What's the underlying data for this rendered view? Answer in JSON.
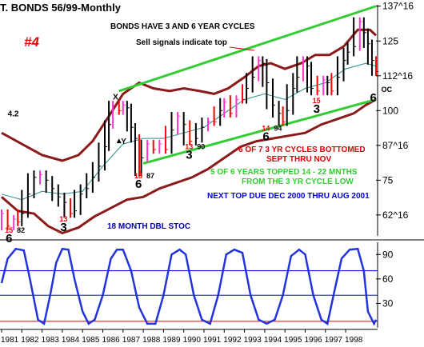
{
  "chart_data": {
    "type": "bar",
    "title": "T. BONDS 56/99-Monthly",
    "chart_number": "#4",
    "price_axis": {
      "ticks": [
        {
          "label": "137^16",
          "value": 137.5
        },
        {
          "label": "125",
          "value": 125
        },
        {
          "label": "112^16",
          "value": 112.5
        },
        {
          "label": "100",
          "value": 100
        },
        {
          "label": "87^16",
          "value": 87.5
        },
        {
          "label": "75",
          "value": 75
        },
        {
          "label": "62^16",
          "value": 62.5
        }
      ],
      "range": [
        55,
        138
      ]
    },
    "x_axis": {
      "tick_labels": [
        "1981",
        "1982",
        "1983",
        "1984",
        "1985",
        "1986",
        "1987",
        "1988",
        "1989",
        "1990",
        "1991",
        "1992",
        "1993",
        "1994",
        "1995",
        "1996",
        "1997",
        "1998"
      ],
      "range": [
        1981,
        1999.5
      ]
    },
    "price_series": {
      "name": "Monthly T-Bond price bars",
      "points": [
        [
          1981.0,
          63
        ],
        [
          1981.3,
          58.5
        ],
        [
          1981.6,
          61
        ],
        [
          1981.8,
          60
        ],
        [
          1982.0,
          63
        ],
        [
          1982.3,
          70
        ],
        [
          1982.6,
          76
        ],
        [
          1982.9,
          77
        ],
        [
          1983.2,
          75
        ],
        [
          1983.5,
          72
        ],
        [
          1983.8,
          69
        ],
        [
          1984.1,
          67
        ],
        [
          1984.4,
          63
        ],
        [
          1984.6,
          64
        ],
        [
          1984.9,
          70
        ],
        [
          1985.2,
          72
        ],
        [
          1985.5,
          76
        ],
        [
          1985.8,
          80
        ],
        [
          1986.1,
          87
        ],
        [
          1986.3,
          95
        ],
        [
          1986.5,
          102
        ],
        [
          1986.8,
          100
        ],
        [
          1987.0,
          102
        ],
        [
          1987.2,
          101
        ],
        [
          1987.4,
          94
        ],
        [
          1987.6,
          90
        ],
        [
          1987.8,
          78
        ],
        [
          1987.9,
          83
        ],
        [
          1988.2,
          88
        ],
        [
          1988.5,
          86
        ],
        [
          1988.8,
          88
        ],
        [
          1989.1,
          86
        ],
        [
          1989.4,
          93
        ],
        [
          1989.7,
          98
        ],
        [
          1990.0,
          95
        ],
        [
          1990.3,
          89
        ],
        [
          1990.6,
          90
        ],
        [
          1990.9,
          94
        ],
        [
          1991.2,
          96
        ],
        [
          1991.5,
          96
        ],
        [
          1991.8,
          100
        ],
        [
          1992.0,
          103
        ],
        [
          1992.3,
          99
        ],
        [
          1992.6,
          104
        ],
        [
          1992.9,
          104
        ],
        [
          1993.1,
          108
        ],
        [
          1993.4,
          112
        ],
        [
          1993.7,
          118
        ],
        [
          1993.9,
          117
        ],
        [
          1994.1,
          110
        ],
        [
          1994.4,
          102
        ],
        [
          1994.7,
          99
        ],
        [
          1994.9,
          96
        ],
        [
          1995.1,
          100
        ],
        [
          1995.4,
          108
        ],
        [
          1995.6,
          112
        ],
        [
          1995.9,
          118
        ],
        [
          1996.1,
          116
        ],
        [
          1996.3,
          108
        ],
        [
          1996.6,
          107
        ],
        [
          1996.9,
          111
        ],
        [
          1997.1,
          110
        ],
        [
          1997.3,
          107
        ],
        [
          1997.6,
          112
        ],
        [
          1997.9,
          118
        ],
        [
          1998.1,
          121
        ],
        [
          1998.4,
          123
        ],
        [
          1998.7,
          132
        ],
        [
          1998.9,
          128
        ],
        [
          1999.1,
          124
        ],
        [
          1999.3,
          118
        ],
        [
          1999.5,
          114
        ]
      ]
    },
    "upper_trendline": {
      "from": [
        1986.8,
        107
      ],
      "to": [
        1999.5,
        137.5
      ],
      "color": "#33cc33"
    },
    "lower_trendline": {
      "from": [
        1988.0,
        81
      ],
      "to": [
        1999.5,
        104
      ],
      "color": "#33cc33"
    },
    "upper_band": {
      "color": "#8b1a1a",
      "points": [
        [
          1981.0,
          92
        ],
        [
          1982.0,
          88
        ],
        [
          1983.0,
          84
        ],
        [
          1984.0,
          82
        ],
        [
          1984.8,
          84
        ],
        [
          1985.5,
          89
        ],
        [
          1986.3,
          98
        ],
        [
          1987.0,
          106
        ],
        [
          1987.8,
          110
        ],
        [
          1988.5,
          108
        ],
        [
          1989.3,
          107
        ],
        [
          1990.0,
          108
        ],
        [
          1990.8,
          107
        ],
        [
          1991.5,
          106
        ],
        [
          1992.2,
          108
        ],
        [
          1993.0,
          112
        ],
        [
          1993.7,
          116
        ],
        [
          1994.3,
          117
        ],
        [
          1995.0,
          115
        ],
        [
          1995.8,
          117
        ],
        [
          1996.5,
          120
        ],
        [
          1997.2,
          120
        ],
        [
          1997.9,
          123
        ],
        [
          1998.6,
          129
        ],
        [
          1999.2,
          129
        ],
        [
          1999.5,
          127
        ]
      ]
    },
    "lower_band": {
      "color": "#8b1a1a",
      "points": [
        [
          1981.0,
          69
        ],
        [
          1981.8,
          64
        ],
        [
          1982.6,
          63
        ],
        [
          1983.3,
          58.5
        ],
        [
          1984.0,
          56
        ],
        [
          1984.8,
          58
        ],
        [
          1985.6,
          62
        ],
        [
          1986.4,
          65
        ],
        [
          1987.2,
          68
        ],
        [
          1988.0,
          69
        ],
        [
          1988.8,
          72
        ],
        [
          1989.6,
          74
        ],
        [
          1990.4,
          76
        ],
        [
          1991.2,
          79
        ],
        [
          1992.0,
          83
        ],
        [
          1992.8,
          87
        ],
        [
          1993.6,
          89
        ],
        [
          1994.4,
          90
        ],
        [
          1995.2,
          91
        ],
        [
          1996.0,
          92
        ],
        [
          1996.8,
          95
        ],
        [
          1997.6,
          97
        ],
        [
          1998.4,
          99
        ],
        [
          1999.0,
          102
        ],
        [
          1999.5,
          104
        ]
      ]
    },
    "moving_average": {
      "color": "#2a8a8a",
      "points": [
        [
          1981.0,
          70
        ],
        [
          1982.0,
          68
        ],
        [
          1983.0,
          71
        ],
        [
          1984.0,
          70
        ],
        [
          1985.0,
          71
        ],
        [
          1986.0,
          80
        ],
        [
          1987.0,
          88
        ],
        [
          1988.0,
          90
        ],
        [
          1989.0,
          90
        ],
        [
          1990.0,
          92
        ],
        [
          1991.0,
          94
        ],
        [
          1992.0,
          99
        ],
        [
          1993.0,
          104
        ],
        [
          1994.0,
          106
        ],
        [
          1995.0,
          104
        ],
        [
          1996.0,
          108
        ],
        [
          1997.0,
          110
        ],
        [
          1998.0,
          115
        ],
        [
          1999.0,
          117
        ],
        [
          1999.5,
          116
        ]
      ]
    },
    "price_annotations": [
      {
        "text": "BONDS HAVE 3 AND 6 YEAR CYCLES",
        "color": "#000000"
      },
      {
        "text": "Sell signals indicate top",
        "color": "#000000"
      },
      {
        "text": "6 OF 7 3 YR CYCLES BOTTOMED",
        "color": "#dd0000"
      },
      {
        "text": "SEPT THRU NOV",
        "color": "#dd0000"
      },
      {
        "text": "5 OF 6 YEARS TOPPED 14 - 22 MNTHS",
        "color": "#33cc33"
      },
      {
        "text": "FROM THE 3 YR CYCLE LOW",
        "color": "#33cc33"
      },
      {
        "text": "NEXT TOP DUE DEC 2000 THRU AUG 2001",
        "color": "#0000dd"
      },
      {
        "text": "18 MONTH DBL STOC",
        "color": "#0000aa"
      }
    ],
    "cycle_labels": [
      {
        "text": "6",
        "x": 1981.4,
        "y": 58.5,
        "sub": "15",
        "tag": "82"
      },
      {
        "text": "3",
        "x": 1984.1,
        "y": 62.5,
        "sub": "13"
      },
      {
        "text": "6",
        "x": 1987.8,
        "y": 78,
        "sub": "18",
        "tag": "87"
      },
      {
        "text": "3",
        "x": 1990.3,
        "y": 88.5,
        "sub": "13",
        "tag": "90"
      },
      {
        "text": "6",
        "x": 1994.1,
        "y": 95,
        "sub": "14",
        "tag": "94"
      },
      {
        "text": "3",
        "x": 1996.6,
        "y": 105,
        "sub": "15"
      },
      {
        "text": "6",
        "x": 1999.4,
        "y": 109,
        "tag": "OC"
      }
    ],
    "misc_labels": [
      {
        "text": "X",
        "x": 1986.5,
        "y": 104
      },
      {
        "text": "Y",
        "x": 1986.9,
        "y": 88
      },
      {
        "text": "4.2",
        "x": 1981.3,
        "y": 98
      }
    ],
    "stochastic": {
      "name": "18 MONTH DBL STOC",
      "range": [
        0,
        105
      ],
      "ticks": [
        {
          "label": "90",
          "value": 90
        },
        {
          "label": "60",
          "value": 60
        },
        {
          "label": "30",
          "value": 30
        }
      ],
      "reference_lines": [
        70,
        40
      ],
      "points": [
        [
          1981.0,
          55
        ],
        [
          1981.3,
          85
        ],
        [
          1981.7,
          97
        ],
        [
          1982.1,
          95
        ],
        [
          1982.4,
          60
        ],
        [
          1982.8,
          10
        ],
        [
          1983.1,
          5
        ],
        [
          1983.4,
          40
        ],
        [
          1983.7,
          80
        ],
        [
          1984.0,
          97
        ],
        [
          1984.3,
          96
        ],
        [
          1984.6,
          60
        ],
        [
          1985.0,
          20
        ],
        [
          1985.3,
          5
        ],
        [
          1985.6,
          10
        ],
        [
          1986.0,
          40
        ],
        [
          1986.4,
          85
        ],
        [
          1986.7,
          96
        ],
        [
          1987.0,
          96
        ],
        [
          1987.4,
          70
        ],
        [
          1987.8,
          25
        ],
        [
          1988.2,
          5
        ],
        [
          1988.6,
          5
        ],
        [
          1989.0,
          40
        ],
        [
          1989.4,
          90
        ],
        [
          1989.8,
          96
        ],
        [
          1990.1,
          90
        ],
        [
          1990.5,
          40
        ],
        [
          1990.9,
          10
        ],
        [
          1991.3,
          5
        ],
        [
          1991.7,
          40
        ],
        [
          1992.1,
          90
        ],
        [
          1992.5,
          96
        ],
        [
          1992.9,
          92
        ],
        [
          1993.3,
          40
        ],
        [
          1993.7,
          10
        ],
        [
          1994.1,
          5
        ],
        [
          1994.5,
          10
        ],
        [
          1994.9,
          40
        ],
        [
          1995.3,
          88
        ],
        [
          1995.7,
          96
        ],
        [
          1996.0,
          90
        ],
        [
          1996.4,
          40
        ],
        [
          1996.8,
          10
        ],
        [
          1997.1,
          5
        ],
        [
          1997.4,
          40
        ],
        [
          1997.8,
          85
        ],
        [
          1998.2,
          96
        ],
        [
          1998.6,
          97
        ],
        [
          1998.9,
          70
        ],
        [
          1999.1,
          20
        ],
        [
          1999.4,
          5
        ],
        [
          1999.5,
          10
        ]
      ]
    }
  }
}
